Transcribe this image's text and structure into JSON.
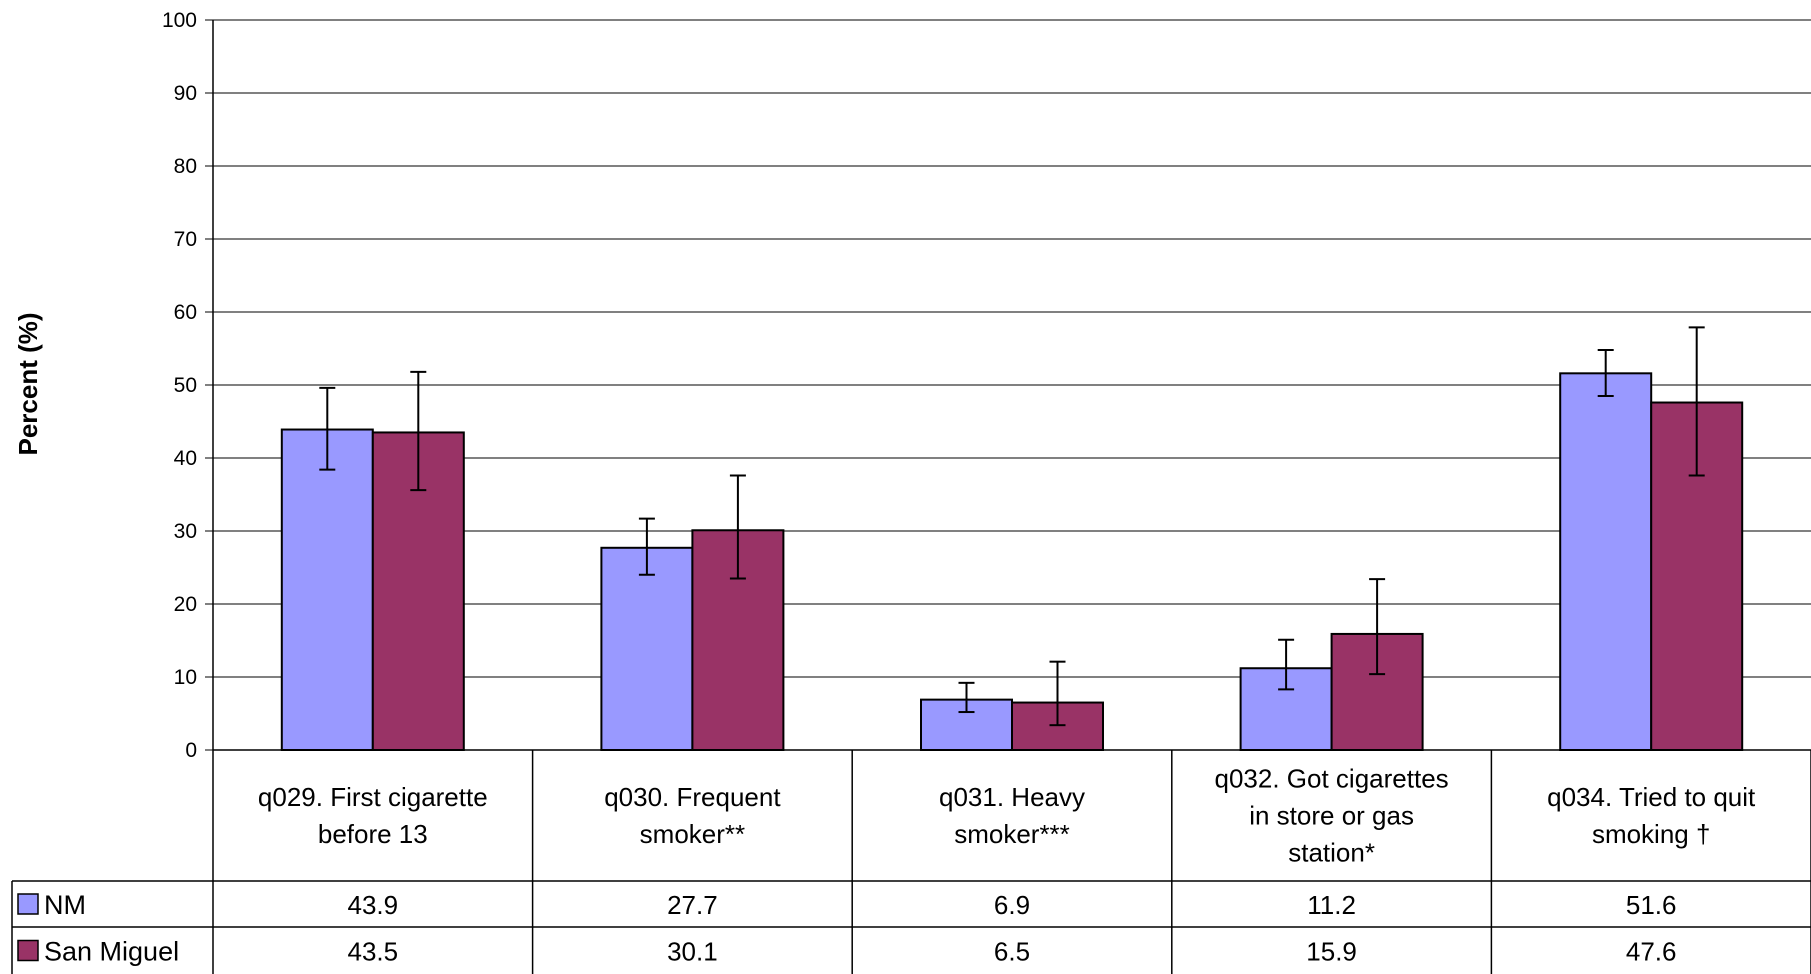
{
  "chart_data": {
    "type": "bar",
    "title": "",
    "xlabel": "",
    "ylabel": "Percent (%)",
    "ylim": [
      0,
      100
    ],
    "yticks": [
      0,
      10,
      20,
      30,
      40,
      50,
      60,
      70,
      80,
      90,
      100
    ],
    "grid": true,
    "legend": "data-table",
    "categories": [
      "q029. First cigarette before 13",
      "q030. Frequent smoker**",
      "q031. Heavy smoker***",
      "q032. Got cigarettes in store or gas station*",
      "q034. Tried to quit smoking †"
    ],
    "category_lines": [
      [
        "q029. First cigarette",
        "before 13"
      ],
      [
        "q030. Frequent",
        "smoker**"
      ],
      [
        "q031. Heavy",
        "smoker***"
      ],
      [
        "q032. Got cigarettes",
        "in store or gas",
        "station*"
      ],
      [
        "q034. Tried to quit",
        "smoking †"
      ]
    ],
    "series": [
      {
        "name": "NM",
        "color": "#9999ff",
        "values": [
          43.9,
          27.7,
          6.9,
          11.2,
          51.6
        ],
        "value_labels": [
          "43.9",
          "27.7",
          "6.9",
          "11.2",
          "51.6"
        ],
        "error_low": [
          38.4,
          24.0,
          5.2,
          8.3,
          48.5
        ],
        "error_high": [
          49.6,
          31.7,
          9.2,
          15.1,
          54.8
        ]
      },
      {
        "name": "San Miguel",
        "color": "#993366",
        "values": [
          43.5,
          30.1,
          6.5,
          15.9,
          47.6
        ],
        "value_labels": [
          "43.5",
          "30.1",
          "6.5",
          "15.9",
          "47.6"
        ],
        "error_low": [
          35.6,
          23.5,
          3.4,
          10.4,
          37.6
        ],
        "error_high": [
          51.8,
          37.6,
          12.1,
          23.4,
          57.9
        ]
      }
    ]
  }
}
